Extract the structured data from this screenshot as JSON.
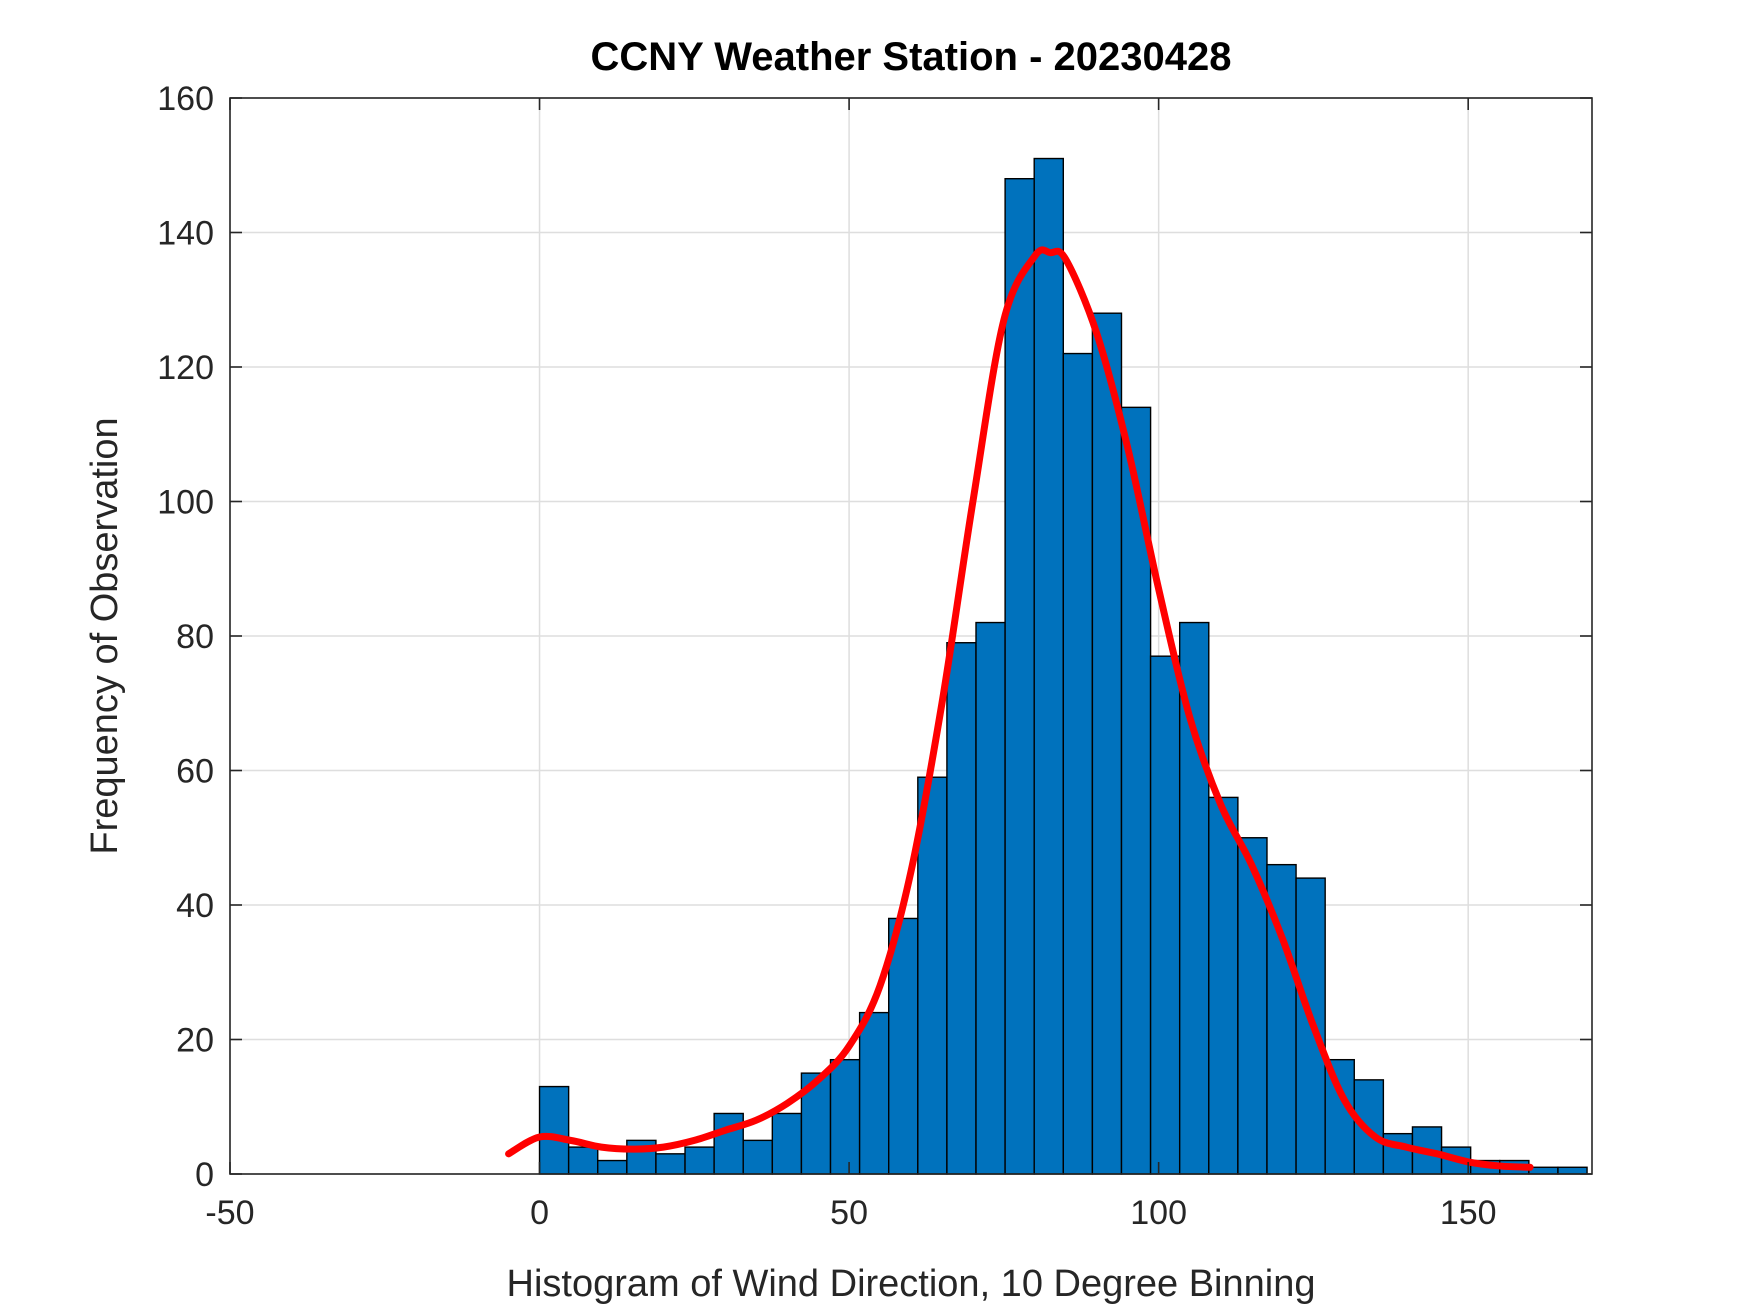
{
  "chart_data": {
    "type": "bar",
    "title": "CCNY Weather Station - 20230428",
    "xlabel": "Histogram of Wind Direction, 10 Degree Binning",
    "ylabel": "Frequency of Observation",
    "xlim": [
      -50,
      170
    ],
    "ylim": [
      0,
      160
    ],
    "xticks": [
      -50,
      0,
      50,
      100,
      150
    ],
    "yticks": [
      0,
      20,
      40,
      60,
      80,
      100,
      120,
      140,
      160
    ],
    "grid": true,
    "bin_edges": [
      0,
      4.7,
      9.4,
      14.1,
      18.8,
      23.5,
      28.2,
      32.9,
      37.6,
      42.3,
      47,
      51.7,
      56.4,
      61.1,
      65.8,
      70.5,
      75.2,
      79.9,
      84.6,
      89.3,
      94,
      98.7,
      103.4,
      108.1,
      112.8,
      117.5,
      122.2,
      126.9,
      131.6,
      136.3,
      141,
      145.7,
      150.4,
      155.1,
      159.8,
      164.5,
      169.2
    ],
    "values": [
      13,
      4,
      2,
      5,
      3,
      4,
      9,
      5,
      9,
      15,
      17,
      24,
      38,
      59,
      79,
      82,
      148,
      151,
      122,
      128,
      114,
      77,
      82,
      56,
      50,
      46,
      44,
      17,
      14,
      6,
      7,
      4,
      2,
      2,
      1,
      1
    ],
    "bar_color": "#0072BD",
    "bar_edge_color": "#000000",
    "fit_curve": {
      "name": "density fit",
      "color": "#FF0000",
      "x": [
        -5,
        0,
        5,
        10,
        15,
        20,
        25,
        30,
        35,
        40,
        45,
        50,
        55,
        60,
        65,
        70,
        75,
        80,
        82.5,
        85,
        90,
        95,
        100,
        105,
        110,
        115,
        120,
        125,
        130,
        135,
        140,
        145,
        150,
        155,
        160
      ],
      "y": [
        3,
        5.5,
        5,
        4,
        3.7,
        4,
        5,
        6.5,
        8,
        10.5,
        14,
        19,
        28,
        45,
        70,
        100,
        127,
        136.5,
        137,
        136,
        125,
        108,
        87,
        68,
        55,
        46,
        35,
        22,
        11,
        5.5,
        4,
        3,
        1.8,
        1.2,
        1
      ]
    }
  }
}
